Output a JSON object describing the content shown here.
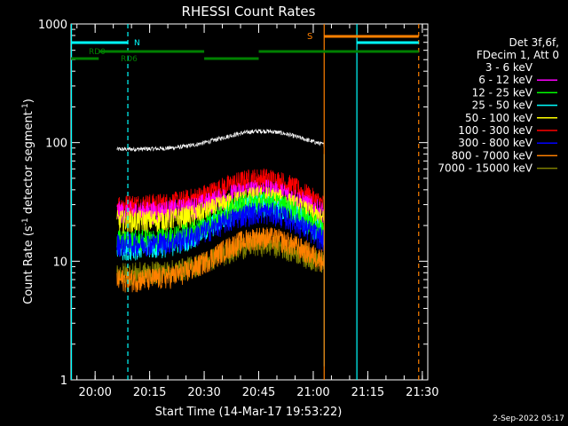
{
  "chart_data": {
    "type": "line",
    "title": "RHESSI Count Rates",
    "xlabel": "Start Time (14-Mar-17 19:53:22)",
    "ylabel_main": "Count Rate (s",
    "ylabel_sup": "-1",
    "ylabel_mid": " detector segment",
    "ylabel_sup2": "-1",
    "ylabel_end": ")",
    "yscale": "log",
    "xlim": [
      "19:53:22",
      "21:31:30"
    ],
    "ylim": [
      1,
      1000
    ],
    "x_ticks": [
      "20:00",
      "20:15",
      "20:30",
      "20:45",
      "21:00",
      "21:15",
      "21:30"
    ],
    "y_ticks": [
      "1",
      "10",
      "100",
      "1000"
    ],
    "grid": false,
    "legend_position": "top-right",
    "legend_header": [
      "Det 3f,6f,",
      "FDecim 1, Att 0"
    ],
    "series": [
      {
        "name": "3 - 6 keV",
        "color": "#000000",
        "start_level": 88,
        "peak_level": 125,
        "end_level": 85
      },
      {
        "name": "6 - 12 keV",
        "color": "#ff00ff",
        "start_level": 26,
        "peak_level": 40,
        "end_level": 20
      },
      {
        "name": "12 - 25 keV",
        "color": "#00ff00",
        "start_level": 15,
        "peak_level": 32,
        "end_level": 13
      },
      {
        "name": "25 - 50 keV",
        "color": "#00ffff",
        "start_level": 13,
        "peak_level": 30,
        "end_level": 12
      },
      {
        "name": "50 - 100 keV",
        "color": "#ffff00",
        "start_level": 22,
        "peak_level": 35,
        "end_level": 17
      },
      {
        "name": "100 - 300 keV",
        "color": "#ff0000",
        "start_level": 30,
        "peak_level": 50,
        "end_level": 22
      },
      {
        "name": "300 - 800 keV",
        "color": "#0000ff",
        "start_level": 14,
        "peak_level": 26,
        "end_level": 11
      },
      {
        "name": "800 - 7000 keV",
        "color": "#ff8000",
        "start_level": 7,
        "peak_level": 16,
        "end_level": 8
      },
      {
        "name": "7000 - 15000 keV",
        "color": "#808000",
        "start_level": 8,
        "peak_level": 14,
        "end_level": 8
      }
    ],
    "data_window": [
      "20:06",
      "21:03"
    ],
    "annotations": {
      "rd0_label": "RD0",
      "rd6_label": "RD6",
      "n_label": "N",
      "s_label": "S"
    },
    "attenuator_segments_green": [
      [
        "19:53:22",
        "20:01:00"
      ],
      [
        "20:01:00",
        "20:30:00"
      ],
      [
        "20:30:00",
        "20:45:00"
      ],
      [
        "20:45:00",
        "21:29:00"
      ]
    ],
    "cyan_segments": [
      [
        "19:53:22",
        "20:09:00"
      ],
      [
        "21:12:00",
        "21:29:00"
      ]
    ],
    "orange_segments": [
      [
        "21:03:00",
        "21:29:00"
      ]
    ],
    "cyan_lines": [
      "19:53:30",
      "21:12:00"
    ],
    "cyan_dashed_lines": [
      "20:09:00"
    ],
    "orange_lines": [
      "21:03:00"
    ],
    "orange_dashed_lines": [
      "21:29:00"
    ]
  },
  "footer": {
    "date": "2-Sep-2022 05:17"
  }
}
